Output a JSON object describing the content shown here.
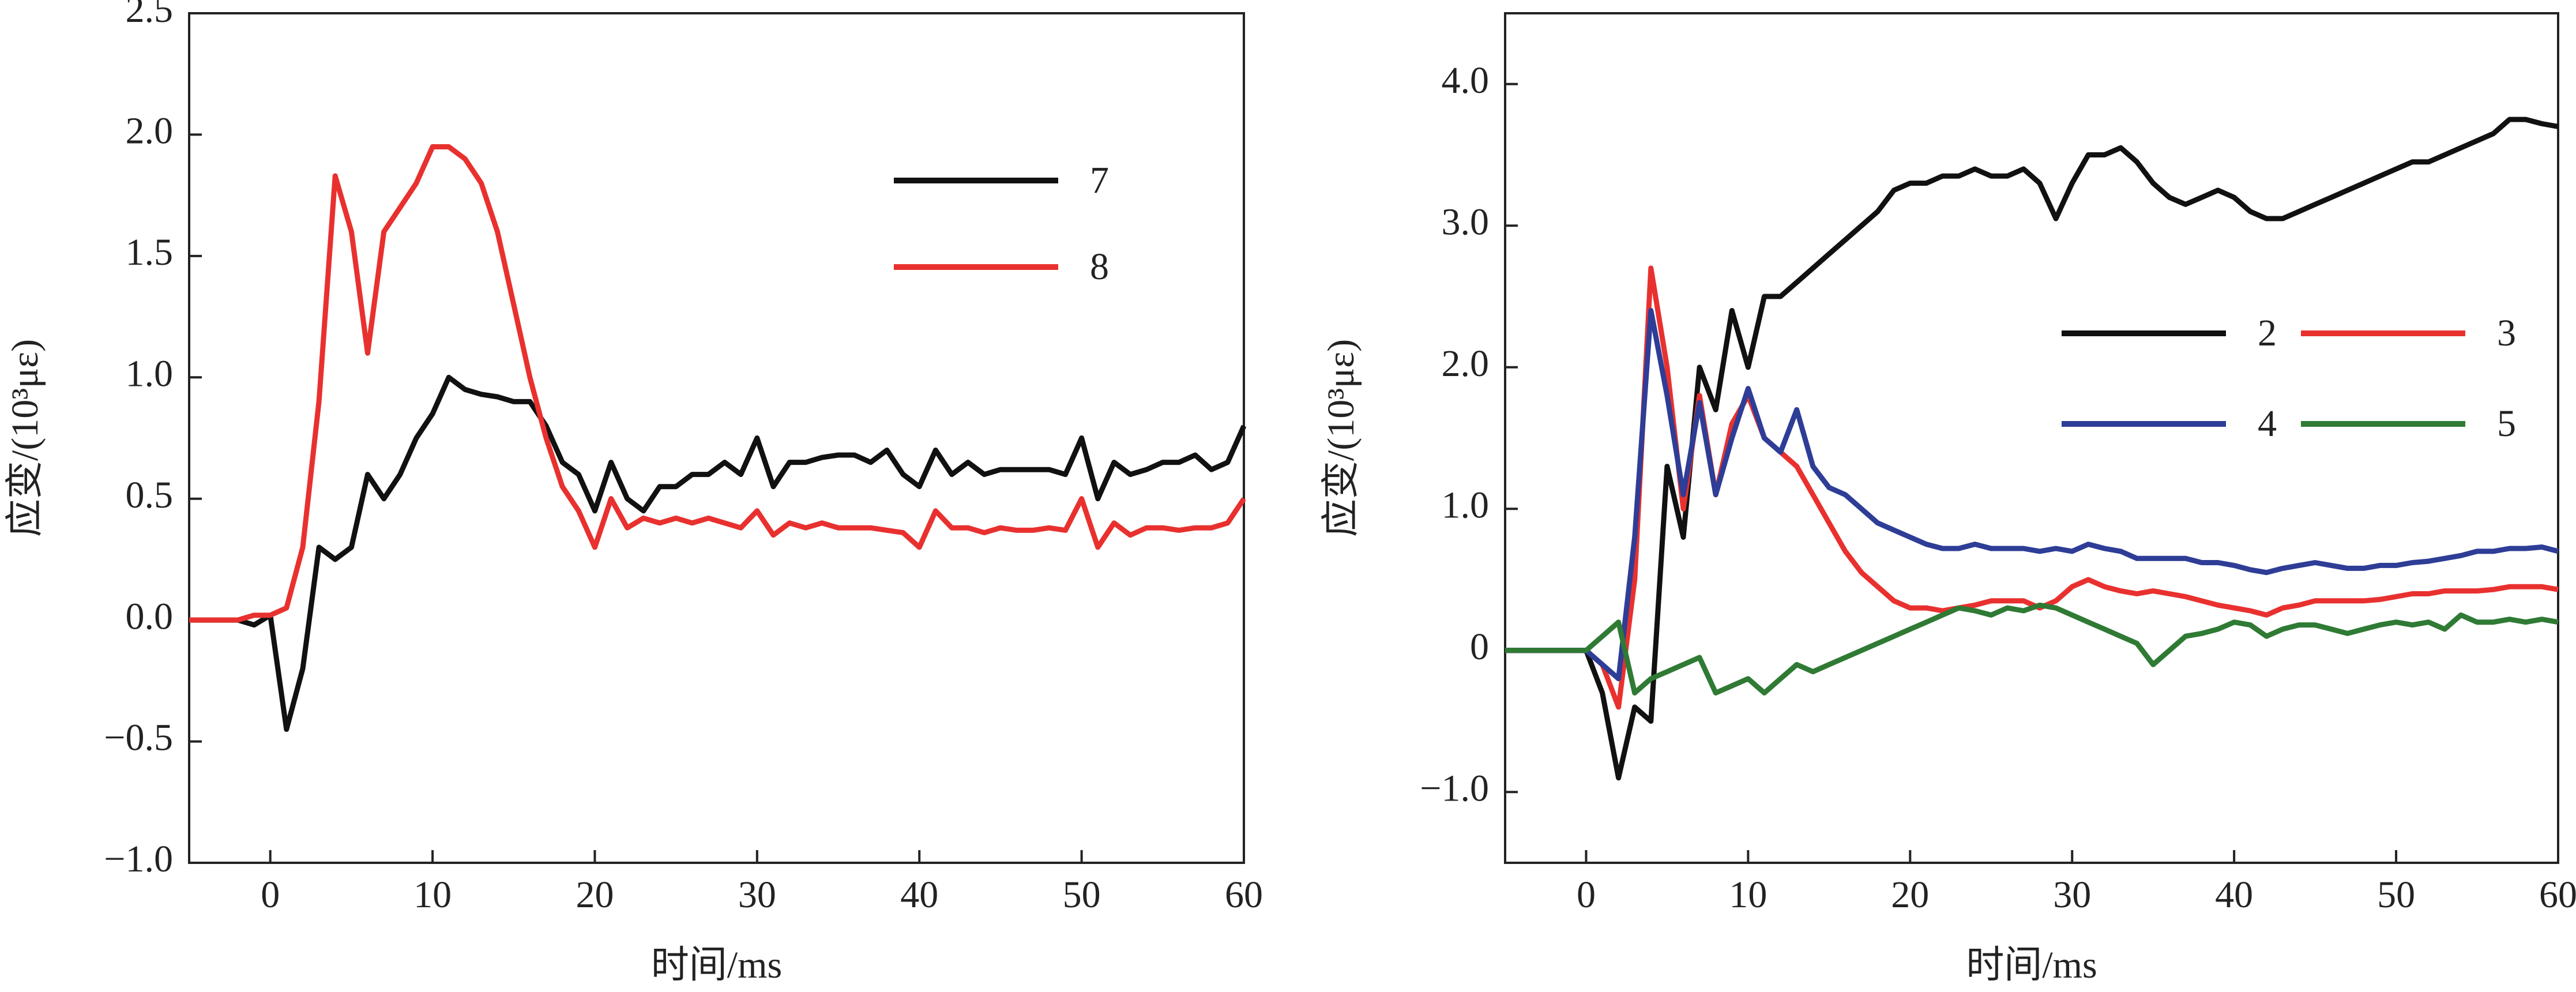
{
  "chart_data": [
    {
      "type": "line",
      "xlabel": "时间/ms",
      "ylabel": "应变/(10³με)",
      "x": [
        -5,
        -4,
        -3,
        -2,
        -1,
        0,
        1,
        2,
        3,
        4,
        5,
        6,
        7,
        8,
        9,
        10,
        11,
        12,
        13,
        14,
        15,
        16,
        17,
        18,
        19,
        20,
        21,
        22,
        23,
        24,
        25,
        26,
        27,
        28,
        29,
        30,
        31,
        32,
        33,
        34,
        35,
        36,
        37,
        38,
        39,
        40,
        41,
        42,
        43,
        44,
        45,
        46,
        47,
        48,
        49,
        50,
        51,
        52,
        53,
        54,
        55,
        56,
        57,
        58,
        59,
        60
      ],
      "series": [
        {
          "name": "7",
          "color": "#111111",
          "values": [
            0,
            0,
            0,
            0,
            -0.02,
            0.02,
            -0.45,
            -0.2,
            0.3,
            0.25,
            0.3,
            0.6,
            0.5,
            0.6,
            0.75,
            0.85,
            1.0,
            0.95,
            0.93,
            0.92,
            0.9,
            0.9,
            0.8,
            0.65,
            0.6,
            0.45,
            0.65,
            0.5,
            0.45,
            0.55,
            0.55,
            0.6,
            0.6,
            0.65,
            0.6,
            0.75,
            0.55,
            0.65,
            0.65,
            0.67,
            0.68,
            0.68,
            0.65,
            0.7,
            0.6,
            0.55,
            0.7,
            0.6,
            0.65,
            0.6,
            0.62,
            0.62,
            0.62,
            0.62,
            0.6,
            0.75,
            0.5,
            0.65,
            0.6,
            0.62,
            0.65,
            0.65,
            0.68,
            0.62,
            0.65,
            0.8
          ]
        },
        {
          "name": "8",
          "color": "#e8312f",
          "values": [
            0,
            0,
            0,
            0,
            0.02,
            0.02,
            0.05,
            0.3,
            0.9,
            1.83,
            1.6,
            1.1,
            1.6,
            1.7,
            1.8,
            1.95,
            1.95,
            1.9,
            1.8,
            1.6,
            1.3,
            1.0,
            0.75,
            0.55,
            0.45,
            0.3,
            0.5,
            0.38,
            0.42,
            0.4,
            0.42,
            0.4,
            0.42,
            0.4,
            0.38,
            0.45,
            0.35,
            0.4,
            0.38,
            0.4,
            0.38,
            0.38,
            0.38,
            0.37,
            0.36,
            0.3,
            0.45,
            0.38,
            0.38,
            0.36,
            0.38,
            0.37,
            0.37,
            0.38,
            0.37,
            0.5,
            0.3,
            0.4,
            0.35,
            0.38,
            0.38,
            0.37,
            0.38,
            0.38,
            0.4,
            0.5
          ]
        }
      ],
      "xlim": [
        -5,
        60
      ],
      "xticks": [
        0,
        10,
        20,
        30,
        40,
        50,
        60
      ],
      "ylim": [
        -1.0,
        2.5
      ],
      "yticks": [
        {
          "value": -1.0,
          "label": "−1.0"
        },
        {
          "value": -0.5,
          "label": "−0.5"
        },
        {
          "value": 0,
          "label": "0.0"
        },
        {
          "value": 0.5,
          "label": "0.5"
        },
        {
          "value": 1.0,
          "label": "1.0"
        },
        {
          "value": 1.5,
          "label": "1.5"
        },
        {
          "value": 2.0,
          "label": "2.0"
        },
        {
          "value": 2.5,
          "label": "2.5"
        }
      ]
    },
    {
      "type": "line",
      "xlabel": "时间/ms",
      "ylabel": "应变/(10³με)",
      "x": [
        -5,
        -4,
        -3,
        -2,
        -1,
        0,
        1,
        2,
        3,
        4,
        5,
        6,
        7,
        8,
        9,
        10,
        11,
        12,
        13,
        14,
        15,
        16,
        17,
        18,
        19,
        20,
        21,
        22,
        23,
        24,
        25,
        26,
        27,
        28,
        29,
        30,
        31,
        32,
        33,
        34,
        35,
        36,
        37,
        38,
        39,
        40,
        41,
        42,
        43,
        44,
        45,
        46,
        47,
        48,
        49,
        50,
        51,
        52,
        53,
        54,
        55,
        56,
        57,
        58,
        59,
        60
      ],
      "series": [
        {
          "name": "2",
          "color": "#111111",
          "values": [
            0,
            0,
            0,
            0,
            0,
            0,
            -0.3,
            -0.9,
            -0.4,
            -0.5,
            1.3,
            0.8,
            2.0,
            1.7,
            2.4,
            2.0,
            2.5,
            2.5,
            2.6,
            2.7,
            2.8,
            2.9,
            3.0,
            3.1,
            3.25,
            3.3,
            3.3,
            3.35,
            3.35,
            3.4,
            3.35,
            3.35,
            3.4,
            3.3,
            3.05,
            3.3,
            3.5,
            3.5,
            3.55,
            3.45,
            3.3,
            3.2,
            3.15,
            3.2,
            3.25,
            3.2,
            3.1,
            3.05,
            3.05,
            3.1,
            3.15,
            3.2,
            3.25,
            3.3,
            3.35,
            3.4,
            3.45,
            3.45,
            3.5,
            3.55,
            3.6,
            3.65,
            3.75,
            3.75,
            3.72,
            3.7
          ]
        },
        {
          "name": "3",
          "color": "#e8312f",
          "values": [
            0,
            0,
            0,
            0,
            0,
            0,
            -0.1,
            -0.4,
            0.5,
            2.7,
            2.0,
            1.0,
            1.8,
            1.1,
            1.6,
            1.8,
            1.5,
            1.4,
            1.3,
            1.1,
            0.9,
            0.7,
            0.55,
            0.45,
            0.35,
            0.3,
            0.3,
            0.28,
            0.3,
            0.32,
            0.35,
            0.35,
            0.35,
            0.3,
            0.35,
            0.45,
            0.5,
            0.45,
            0.42,
            0.4,
            0.42,
            0.4,
            0.38,
            0.35,
            0.32,
            0.3,
            0.28,
            0.25,
            0.3,
            0.32,
            0.35,
            0.35,
            0.35,
            0.35,
            0.36,
            0.38,
            0.4,
            0.4,
            0.42,
            0.42,
            0.42,
            0.43,
            0.45,
            0.45,
            0.45,
            0.43
          ]
        },
        {
          "name": "4",
          "color": "#2e3d96",
          "values": [
            0,
            0,
            0,
            0,
            0,
            0,
            -0.1,
            -0.2,
            0.8,
            2.4,
            1.8,
            1.1,
            1.75,
            1.1,
            1.5,
            1.85,
            1.5,
            1.4,
            1.7,
            1.3,
            1.15,
            1.1,
            1.0,
            0.9,
            0.85,
            0.8,
            0.75,
            0.72,
            0.72,
            0.75,
            0.72,
            0.72,
            0.72,
            0.7,
            0.72,
            0.7,
            0.75,
            0.72,
            0.7,
            0.65,
            0.65,
            0.65,
            0.65,
            0.62,
            0.62,
            0.6,
            0.57,
            0.55,
            0.58,
            0.6,
            0.62,
            0.6,
            0.58,
            0.58,
            0.6,
            0.6,
            0.62,
            0.63,
            0.65,
            0.67,
            0.7,
            0.7,
            0.72,
            0.72,
            0.73,
            0.7
          ]
        },
        {
          "name": "5",
          "color": "#2f7a34",
          "values": [
            0,
            0,
            0,
            0,
            0,
            0,
            0.1,
            0.2,
            -0.3,
            -0.2,
            -0.15,
            -0.1,
            -0.05,
            -0.3,
            -0.25,
            -0.2,
            -0.3,
            -0.2,
            -0.1,
            -0.15,
            -0.1,
            -0.05,
            0.0,
            0.05,
            0.1,
            0.15,
            0.2,
            0.25,
            0.3,
            0.28,
            0.25,
            0.3,
            0.28,
            0.32,
            0.3,
            0.25,
            0.2,
            0.15,
            0.1,
            0.05,
            -0.1,
            0.0,
            0.1,
            0.12,
            0.15,
            0.2,
            0.18,
            0.1,
            0.15,
            0.18,
            0.18,
            0.15,
            0.12,
            0.15,
            0.18,
            0.2,
            0.18,
            0.2,
            0.15,
            0.25,
            0.2,
            0.2,
            0.22,
            0.2,
            0.22,
            0.2
          ]
        }
      ],
      "xlim": [
        -5,
        60
      ],
      "xticks": [
        0,
        10,
        20,
        30,
        40,
        50,
        60
      ],
      "ylim": [
        -1.5,
        4.5
      ],
      "yticks": [
        {
          "value": -1.0,
          "label": "−1.0"
        },
        0,
        {
          "value": 1.0,
          "label": "1.0"
        },
        {
          "value": 2.0,
          "label": "2.0"
        },
        {
          "value": 3.0,
          "label": "3.0"
        },
        {
          "value": 4.0,
          "label": "4.0"
        }
      ]
    }
  ]
}
